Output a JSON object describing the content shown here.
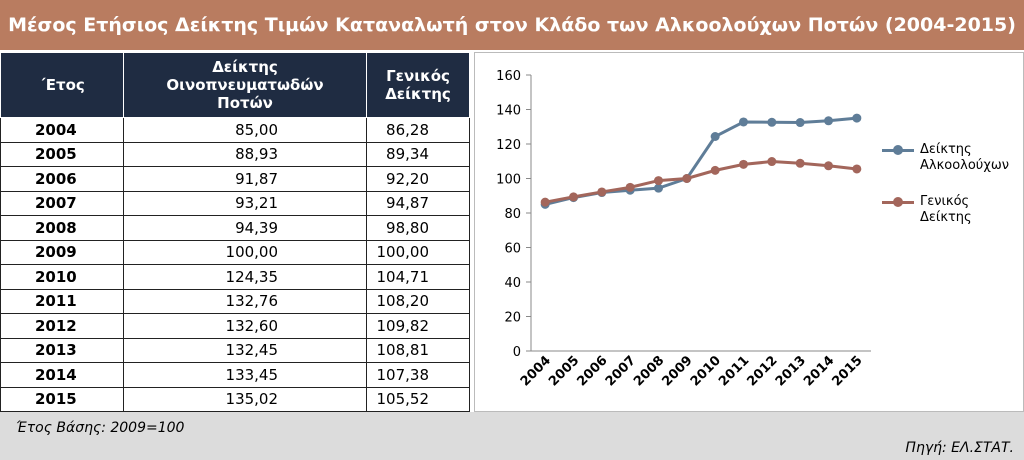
{
  "header": {
    "title": "Μέσος Ετήσιος Δείκτης Τιμών Καταναλωτή στον Κλάδο των Αλκοολούχων Ποτών (2004-2015)"
  },
  "table": {
    "columns": [
      "΄Ετος",
      "Δείκτης Οινοπνευματωδών Ποτών",
      "Γενικός Δείκτης"
    ],
    "rows": [
      [
        "2004",
        "85,00",
        "86,28"
      ],
      [
        "2005",
        "88,93",
        "89,34"
      ],
      [
        "2006",
        "91,87",
        "92,20"
      ],
      [
        "2007",
        "93,21",
        "94,87"
      ],
      [
        "2008",
        "94,39",
        "98,80"
      ],
      [
        "2009",
        "100,00",
        "100,00"
      ],
      [
        "2010",
        "124,35",
        "104,71"
      ],
      [
        "2011",
        "132,76",
        "108,20"
      ],
      [
        "2012",
        "132,60",
        "109,82"
      ],
      [
        "2013",
        "132,45",
        "108,81"
      ],
      [
        "2014",
        "133,45",
        "107,38"
      ],
      [
        "2015",
        "135,02",
        "105,52"
      ]
    ]
  },
  "chart_data": {
    "type": "line",
    "categories": [
      "2004",
      "2005",
      "2006",
      "2007",
      "2008",
      "2009",
      "2010",
      "2011",
      "2012",
      "2013",
      "2014",
      "2015"
    ],
    "series": [
      {
        "name": "Δείκτης Αλκοολούχων",
        "color": "#5f7d98",
        "values": [
          85.0,
          88.93,
          91.87,
          93.21,
          94.39,
          100.0,
          124.35,
          132.76,
          132.6,
          132.45,
          133.45,
          135.02
        ]
      },
      {
        "name": "Γενικός Δείκτης",
        "color": "#a3665b",
        "values": [
          86.28,
          89.34,
          92.2,
          94.87,
          98.8,
          100.0,
          104.71,
          108.2,
          109.82,
          108.81,
          107.38,
          105.52
        ]
      }
    ],
    "ylim": [
      0,
      160
    ],
    "yticks": [
      0,
      20,
      40,
      60,
      80,
      100,
      120,
      140,
      160
    ],
    "grid": false,
    "legend": "right"
  },
  "footer": {
    "note": "Έτος Βάσης: 2009=100",
    "source": "Πηγή: ΕΛ.ΣΤΑΤ."
  }
}
